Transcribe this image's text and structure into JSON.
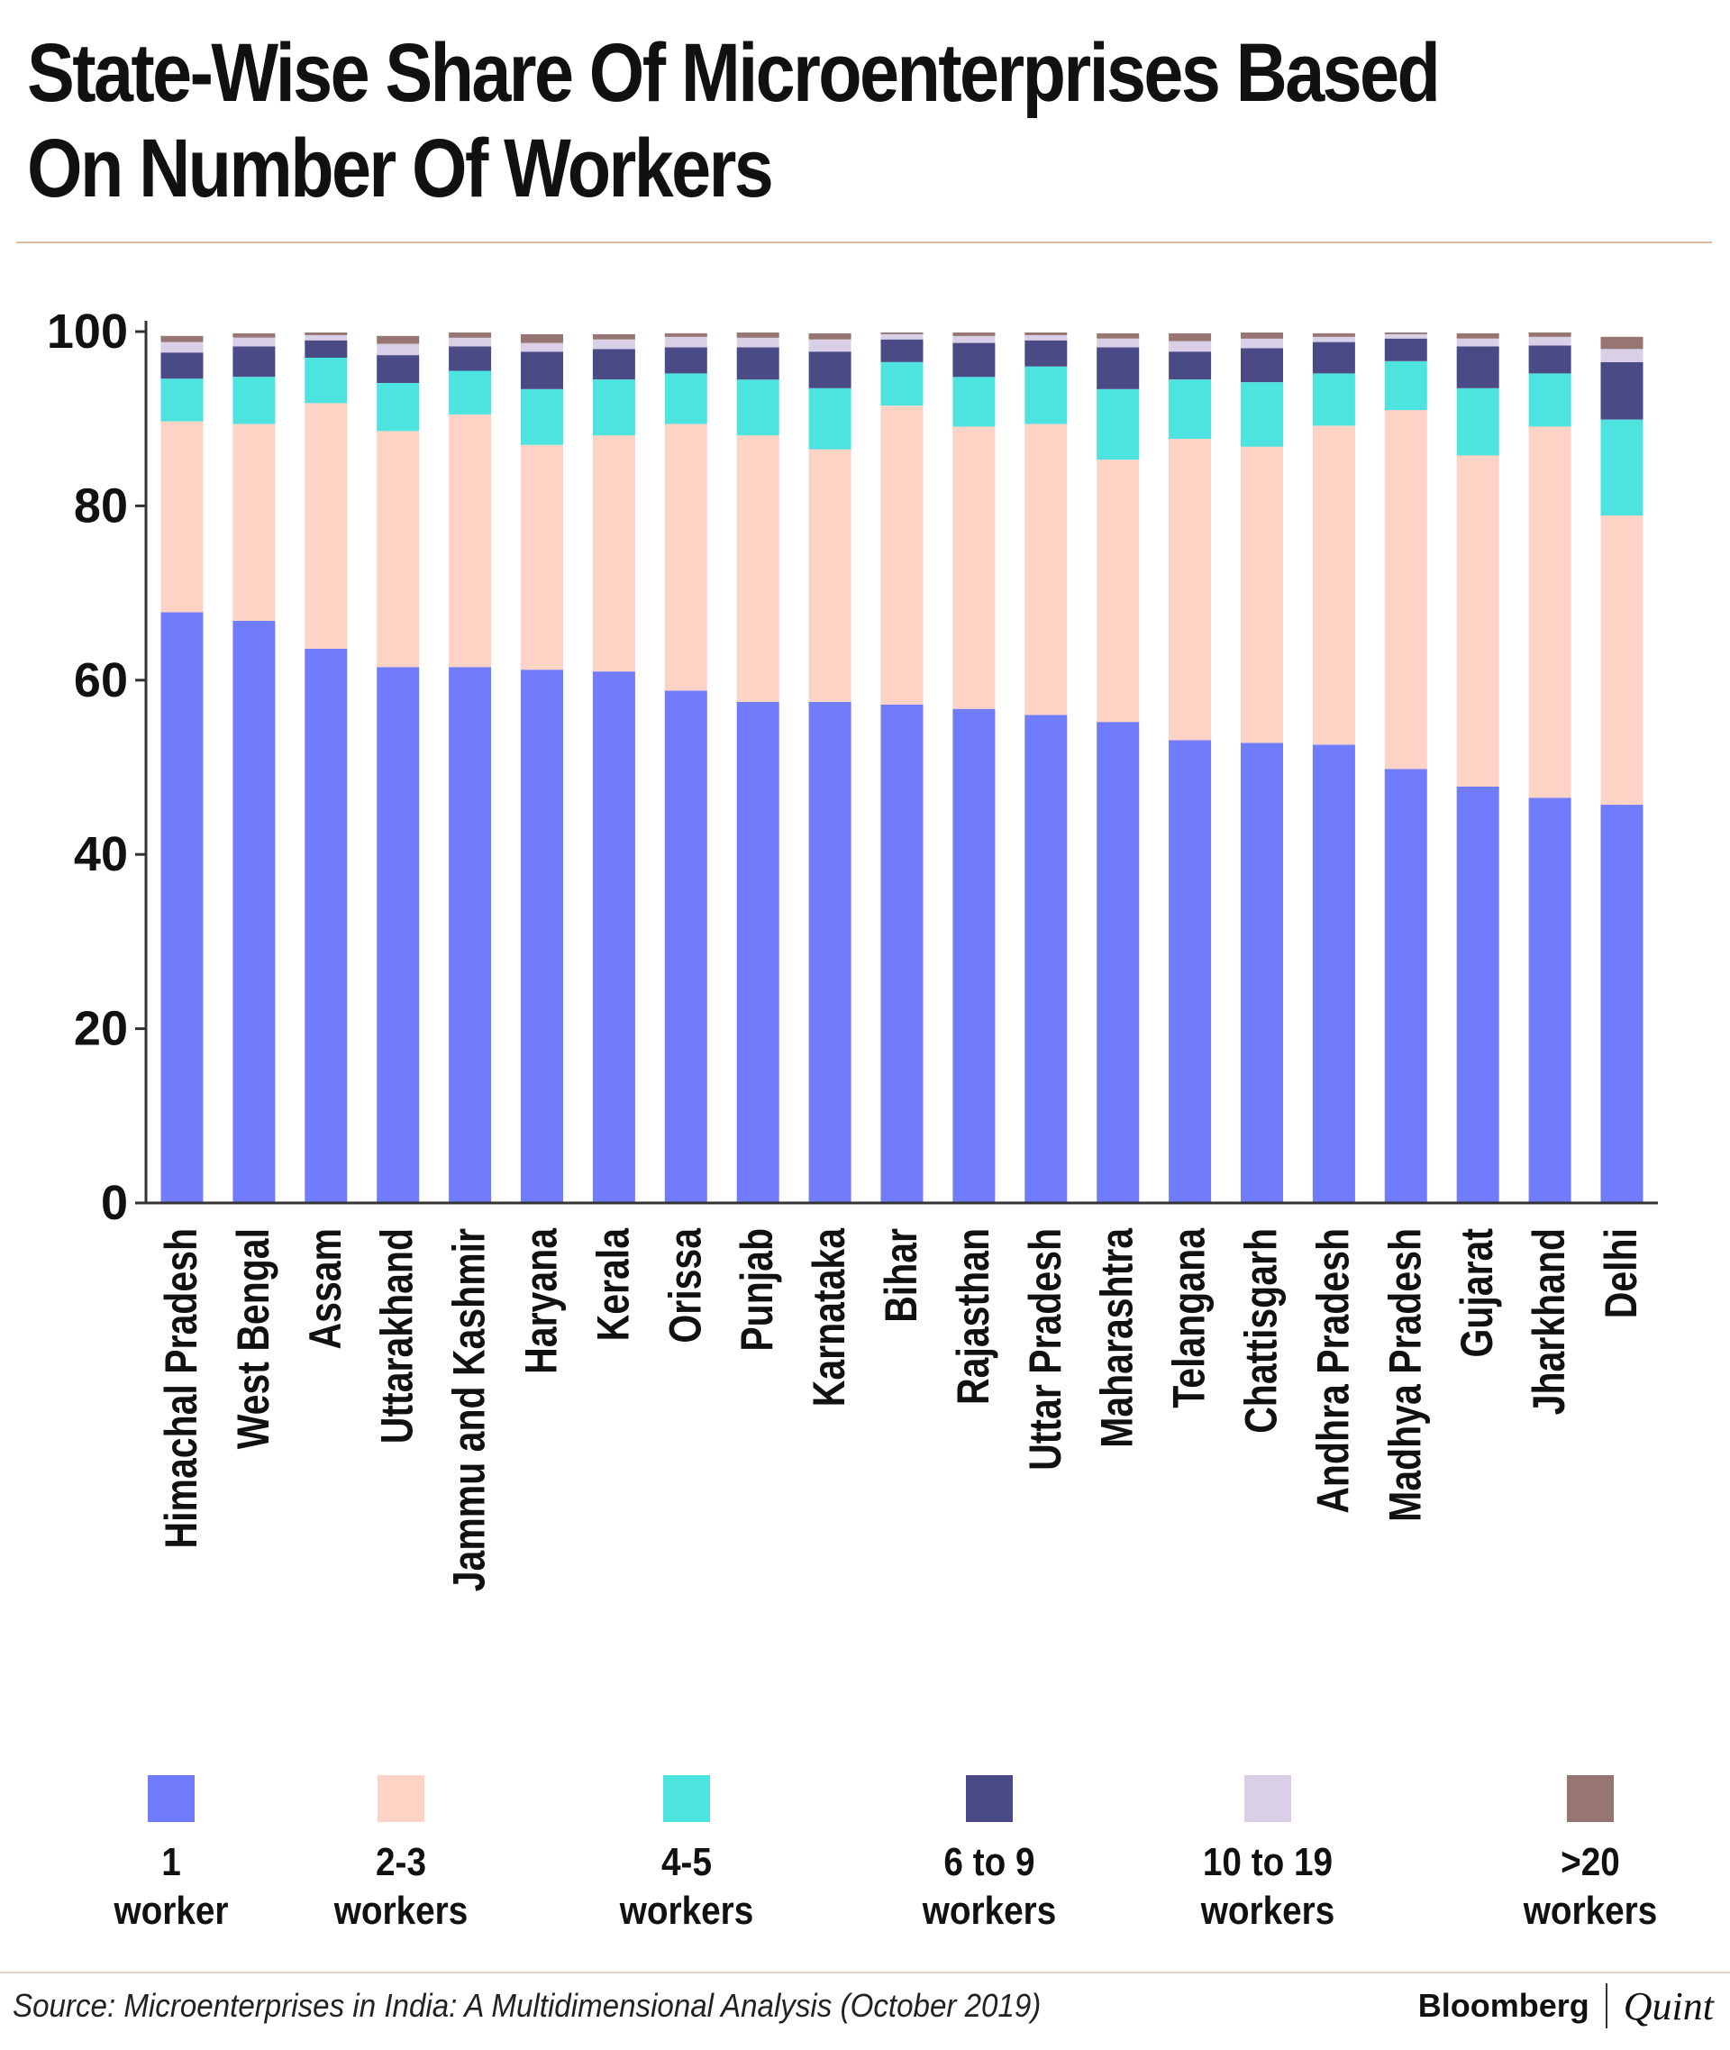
{
  "title": "State-Wise Share Of Microenterprises Based On Number Of Workers",
  "source": "Source: Microenterprises in India: A Multidimensional Analysis (October 2019)",
  "brand": {
    "name": "Bloomberg",
    "partner": "Quint"
  },
  "colors": {
    "title_rule": "#d9b9a3",
    "axis": "#333333"
  },
  "chart_data": {
    "type": "bar",
    "stacked": true,
    "title": "State-Wise Share Of Microenterprises Based On Number Of Workers",
    "xlabel": "",
    "ylabel": "",
    "ylim": [
      0,
      100
    ],
    "yticks": [
      "0",
      "20",
      "40",
      "60",
      "80",
      "100"
    ],
    "grid": false,
    "legend_position": "bottom",
    "categories": [
      "Himachal Pradesh",
      "West Bengal",
      "Assam",
      "Uttarakhand",
      "Jammu and Kashmir",
      "Haryana",
      "Kerala",
      "Orissa",
      "Punjab",
      "Karnataka",
      "Bihar",
      "Rajasthan",
      "Uttar Pradesh",
      "Maharashtra",
      "Telangana",
      "Chattisgarh",
      "Andhra Pradesh",
      "Madhya Pradesh",
      "Gujarat",
      "Jharkhand",
      "Delhi"
    ],
    "series": [
      {
        "name": "1 worker",
        "label_lines": [
          "1",
          "worker"
        ],
        "color": "#717cfc",
        "values": [
          67.8,
          66.8,
          63.6,
          61.5,
          61.5,
          61.2,
          61.0,
          58.8,
          57.5,
          57.5,
          57.2,
          56.7,
          56.0,
          55.2,
          53.1,
          52.8,
          52.6,
          49.8,
          47.8,
          46.5,
          45.7
        ]
      },
      {
        "name": "2-3 workers",
        "label_lines": [
          "2-3",
          "workers"
        ],
        "color": "#fdd3c6",
        "values": [
          21.9,
          22.6,
          28.2,
          27.1,
          29.0,
          25.8,
          27.1,
          30.6,
          30.6,
          29.0,
          34.3,
          32.4,
          33.4,
          30.1,
          34.6,
          34.0,
          36.6,
          41.2,
          38.0,
          42.6,
          33.2
        ]
      },
      {
        "name": "4-5 workers",
        "label_lines": [
          "4-5",
          "workers"
        ],
        "color": "#4de3df",
        "values": [
          4.9,
          5.4,
          5.2,
          5.5,
          5.0,
          6.4,
          6.4,
          5.8,
          6.4,
          7.0,
          5.0,
          5.7,
          6.6,
          8.1,
          6.8,
          7.4,
          6.0,
          5.6,
          7.7,
          6.1,
          11.0
        ]
      },
      {
        "name": "6 to 9 workers",
        "label_lines": [
          "6 to 9",
          "workers"
        ],
        "color": "#4a4a86",
        "values": [
          3.0,
          3.5,
          2.0,
          3.2,
          2.8,
          4.3,
          3.5,
          3.0,
          3.7,
          4.2,
          2.6,
          3.9,
          3.0,
          4.8,
          3.2,
          3.9,
          3.6,
          2.6,
          4.8,
          3.2,
          6.6
        ]
      },
      {
        "name": "10 to 19 workers",
        "label_lines": [
          "10 to 19",
          "workers"
        ],
        "color": "#d9d0e8",
        "values": [
          1.2,
          1.0,
          0.6,
          1.3,
          1.0,
          1.0,
          1.1,
          1.2,
          1.1,
          1.4,
          0.6,
          0.8,
          0.6,
          1.0,
          1.2,
          1.1,
          0.6,
          0.5,
          0.9,
          1.0,
          1.5
        ]
      },
      {
        "name": ">20 workers",
        "label_lines": [
          ">20",
          "workers"
        ],
        "color": "#967572",
        "values": [
          0.7,
          0.5,
          0.3,
          0.9,
          0.6,
          1.0,
          0.6,
          0.4,
          0.6,
          0.7,
          0.2,
          0.4,
          0.3,
          0.6,
          0.9,
          0.7,
          0.4,
          0.2,
          0.6,
          0.5,
          1.4
        ]
      }
    ]
  }
}
